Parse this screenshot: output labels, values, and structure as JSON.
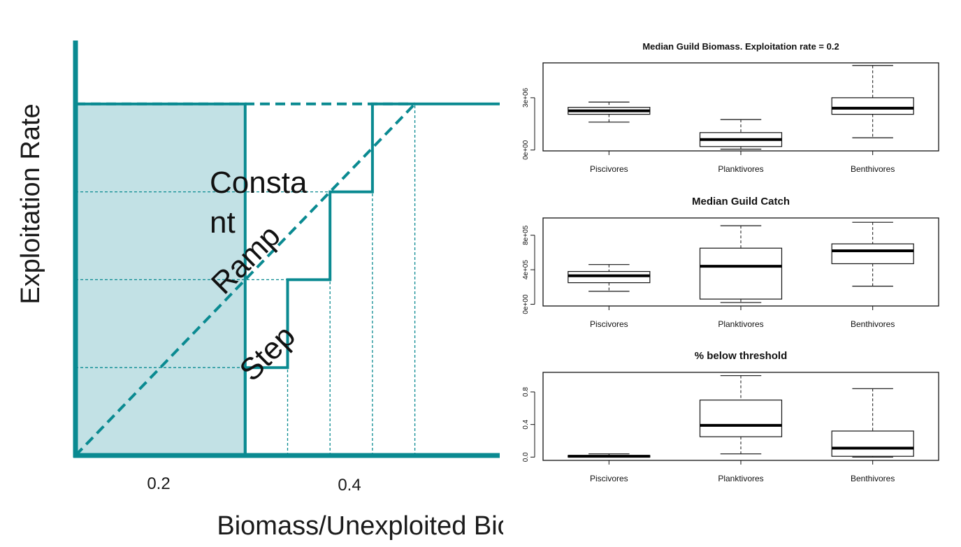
{
  "chart_data": [
    {
      "type": "line",
      "xlabel": "Biomass/Unexploited Biomass",
      "ylabel": "Exploitation Rate",
      "x_ticks": [
        "0.2",
        "0.4"
      ],
      "annotations": [
        "Consta",
        "nt",
        "Ramp",
        "Step"
      ],
      "series": [
        {
          "name": "Constant",
          "style": "dashed",
          "x": [
            0.0,
            0.4
          ],
          "y": [
            0.2,
            0.2
          ]
        },
        {
          "name": "Ramp",
          "style": "dashed",
          "x": [
            0.0,
            0.4
          ],
          "y": [
            0.0,
            0.2
          ]
        },
        {
          "name": "Step",
          "style": "solid",
          "x": [
            0.2,
            0.2,
            0.25,
            0.25,
            0.3,
            0.3,
            0.35,
            0.35,
            0.4,
            0.4,
            0.5
          ],
          "y": [
            0.0,
            0.05,
            0.05,
            0.1,
            0.1,
            0.15,
            0.15,
            0.2,
            0.2,
            0.2,
            0.2
          ]
        }
      ],
      "shaded_region": {
        "x": [
          0.0,
          0.2
        ],
        "y": [
          0.0,
          0.2
        ]
      },
      "guide_lines": {
        "x": [
          0.25,
          0.3,
          0.35
        ],
        "y": [
          0.05,
          0.1,
          0.15
        ]
      },
      "xlim": [
        0.0,
        0.5
      ],
      "ylim": [
        0.0,
        0.25
      ],
      "colors": {
        "main": "#0a8a91",
        "shade": "#c2e1e5"
      }
    },
    {
      "type": "box",
      "title": "Median Guild Biomass. Exploitation rate = 0.2",
      "categories": [
        "Piscivores",
        "Planktivores",
        "Benthivores"
      ],
      "y_ticks": [
        "0e+00",
        "3e+06"
      ],
      "y_tick_values": [
        0,
        3000000
      ],
      "ylim": [
        -50000,
        5000000
      ],
      "boxes": [
        {
          "min": 1600000,
          "q1": 2050000,
          "median": 2250000,
          "q3": 2450000,
          "max": 2750000
        },
        {
          "min": 50000,
          "q1": 200000,
          "median": 600000,
          "q3": 1000000,
          "max": 1750000
        },
        {
          "min": 700000,
          "q1": 2050000,
          "median": 2400000,
          "q3": 3000000,
          "max": 4850000
        }
      ]
    },
    {
      "type": "box",
      "title": "Median Guild Catch",
      "categories": [
        "Piscivores",
        "Planktivores",
        "Benthivores"
      ],
      "y_ticks": [
        "0e+00",
        "4e+05",
        "8e+05"
      ],
      "y_tick_values": [
        0,
        400000,
        800000
      ],
      "ylim": [
        -20000,
        1000000
      ],
      "boxes": [
        {
          "min": 150000,
          "q1": 250000,
          "median": 330000,
          "q3": 380000,
          "max": 460000
        },
        {
          "min": 20000,
          "q1": 60000,
          "median": 440000,
          "q3": 650000,
          "max": 910000
        },
        {
          "min": 210000,
          "q1": 470000,
          "median": 620000,
          "q3": 700000,
          "max": 950000
        }
      ]
    },
    {
      "type": "box",
      "title": "% below threshold",
      "categories": [
        "Piscivores",
        "Planktivores",
        "Benthivores"
      ],
      "y_ticks": [
        "0.0",
        "0.4",
        "0.8"
      ],
      "y_tick_values": [
        0,
        0.4,
        0.8
      ],
      "ylim": [
        -0.04,
        1.04
      ],
      "boxes": [
        {
          "min": 0.0,
          "q1": 0.0,
          "median": 0.01,
          "q3": 0.02,
          "max": 0.04
        },
        {
          "min": 0.04,
          "q1": 0.25,
          "median": 0.39,
          "q3": 0.7,
          "max": 1.0
        },
        {
          "min": 0.0,
          "q1": 0.01,
          "median": 0.11,
          "q3": 0.32,
          "max": 0.84
        }
      ]
    }
  ]
}
